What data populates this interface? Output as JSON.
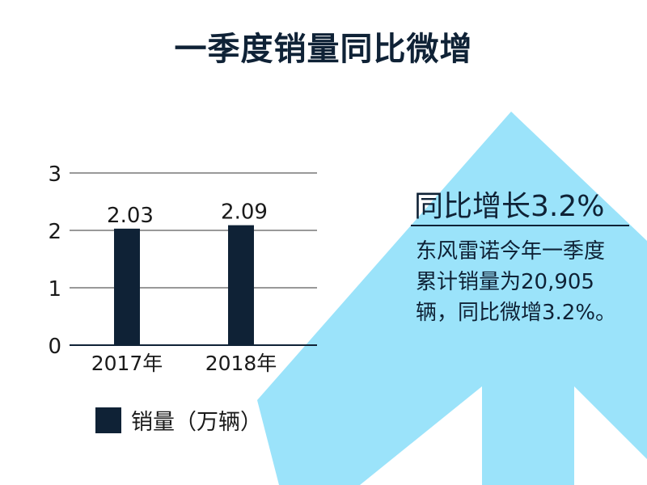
{
  "page": {
    "title": "一季度销量同比微增",
    "highlight": "同比增长3.2%",
    "description": "东风雷诺今年一季度累计销量为20,905辆，同比微增3.2%。"
  },
  "colors": {
    "bar": "#0f2236",
    "arrow": "#9be3fa",
    "text": "#0f2236"
  },
  "chart_data": {
    "type": "bar",
    "categories": [
      "2017年",
      "2018年"
    ],
    "series": [
      {
        "name": "销量（万辆）",
        "values": [
          2.03,
          2.09
        ]
      }
    ],
    "ylim": [
      0,
      3
    ],
    "yticks": [
      "0",
      "1",
      "2",
      "3"
    ],
    "grid": true,
    "legend": "bottom-left",
    "data_labels": [
      "2.03",
      "2.09"
    ]
  }
}
